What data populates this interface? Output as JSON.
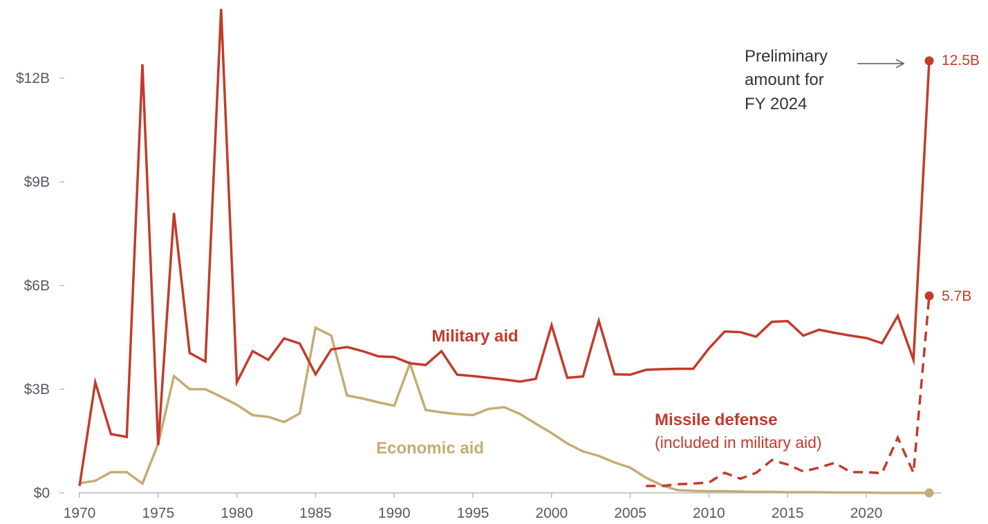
{
  "colors": {
    "military": "#c23b2b",
    "economic": "#c5ac73",
    "axis": "#b8b8b8",
    "tick_text": "#555a60",
    "note_text": "#333333"
  },
  "annotations": {
    "preliminary_lines": [
      "Preliminary",
      "amount for",
      "FY 2024"
    ],
    "military_end": "12.5B",
    "missile_end": "5.7B"
  },
  "chart_data": {
    "type": "line",
    "title": "",
    "xlabel": "",
    "ylabel": "",
    "xlim": [
      1970,
      2024
    ],
    "ylim": [
      0,
      14
    ],
    "x_ticks": [
      1970,
      1975,
      1980,
      1985,
      1990,
      1995,
      2000,
      2005,
      2010,
      2015,
      2020
    ],
    "y_ticks": [
      {
        "value": 0,
        "label": "$0"
      },
      {
        "value": 3,
        "label": "$3B"
      },
      {
        "value": 6,
        "label": "$6B"
      },
      {
        "value": 9,
        "label": "$9B"
      },
      {
        "value": 12,
        "label": "$12B"
      }
    ],
    "grid": false,
    "legend": "none (series labeled inline)",
    "series": [
      {
        "name": "Military aid",
        "key": "military",
        "style": "solid",
        "points": [
          [
            1970,
            0.2
          ],
          [
            1971,
            3.2
          ],
          [
            1972,
            1.7
          ],
          [
            1973,
            1.62
          ],
          [
            1974,
            12.4
          ],
          [
            1975,
            1.38
          ],
          [
            1976,
            8.1
          ],
          [
            1977,
            4.05
          ],
          [
            1978,
            3.8
          ],
          [
            1979,
            14.0
          ],
          [
            1980,
            3.2
          ],
          [
            1981,
            4.1
          ],
          [
            1982,
            3.85
          ],
          [
            1983,
            4.47
          ],
          [
            1984,
            4.32
          ],
          [
            1985,
            3.43
          ],
          [
            1986,
            4.15
          ],
          [
            1987,
            4.22
          ],
          [
            1988,
            4.1
          ],
          [
            1989,
            3.95
          ],
          [
            1990,
            3.93
          ],
          [
            1991,
            3.75
          ],
          [
            1992,
            3.7
          ],
          [
            1993,
            4.1
          ],
          [
            1994,
            3.42
          ],
          [
            1995,
            3.38
          ],
          [
            1996,
            3.33
          ],
          [
            1997,
            3.28
          ],
          [
            1998,
            3.22
          ],
          [
            1999,
            3.3
          ],
          [
            2000,
            4.85
          ],
          [
            2001,
            3.33
          ],
          [
            2002,
            3.37
          ],
          [
            2003,
            4.98
          ],
          [
            2004,
            3.43
          ],
          [
            2005,
            3.42
          ],
          [
            2006,
            3.56
          ],
          [
            2007,
            3.58
          ],
          [
            2008,
            3.59
          ],
          [
            2009,
            3.59
          ],
          [
            2010,
            4.18
          ],
          [
            2011,
            4.67
          ],
          [
            2012,
            4.65
          ],
          [
            2013,
            4.52
          ],
          [
            2014,
            4.95
          ],
          [
            2015,
            4.97
          ],
          [
            2016,
            4.55
          ],
          [
            2017,
            4.72
          ],
          [
            2018,
            4.63
          ],
          [
            2019,
            4.55
          ],
          [
            2020,
            4.48
          ],
          [
            2021,
            4.33
          ],
          [
            2022,
            5.12
          ],
          [
            2023,
            3.85
          ],
          [
            2024,
            12.5
          ]
        ]
      },
      {
        "name": "Economic aid",
        "key": "economic",
        "style": "solid",
        "points": [
          [
            1970,
            0.28
          ],
          [
            1971,
            0.35
          ],
          [
            1972,
            0.6
          ],
          [
            1973,
            0.6
          ],
          [
            1974,
            0.27
          ],
          [
            1975,
            1.42
          ],
          [
            1976,
            3.38
          ],
          [
            1977,
            3.0
          ],
          [
            1978,
            3.0
          ],
          [
            1979,
            2.78
          ],
          [
            1980,
            2.55
          ],
          [
            1981,
            2.25
          ],
          [
            1982,
            2.2
          ],
          [
            1983,
            2.05
          ],
          [
            1984,
            2.3
          ],
          [
            1985,
            4.78
          ],
          [
            1986,
            4.55
          ],
          [
            1987,
            2.82
          ],
          [
            1988,
            2.73
          ],
          [
            1989,
            2.62
          ],
          [
            1990,
            2.52
          ],
          [
            1991,
            3.74
          ],
          [
            1992,
            2.4
          ],
          [
            1993,
            2.33
          ],
          [
            1994,
            2.28
          ],
          [
            1995,
            2.25
          ],
          [
            1996,
            2.43
          ],
          [
            1997,
            2.48
          ],
          [
            1998,
            2.28
          ],
          [
            1999,
            2.0
          ],
          [
            2000,
            1.73
          ],
          [
            2001,
            1.43
          ],
          [
            2002,
            1.2
          ],
          [
            2003,
            1.07
          ],
          [
            2004,
            0.88
          ],
          [
            2005,
            0.73
          ],
          [
            2006,
            0.44
          ],
          [
            2007,
            0.22
          ],
          [
            2008,
            0.08
          ],
          [
            2009,
            0.06
          ],
          [
            2010,
            0.05
          ],
          [
            2011,
            0.05
          ],
          [
            2012,
            0.04
          ],
          [
            2013,
            0.03
          ],
          [
            2014,
            0.03
          ],
          [
            2015,
            0.02
          ],
          [
            2016,
            0.02
          ],
          [
            2017,
            0.02
          ],
          [
            2018,
            0.01
          ],
          [
            2019,
            0.01
          ],
          [
            2020,
            0.01
          ],
          [
            2021,
            0.0
          ],
          [
            2022,
            0.0
          ],
          [
            2023,
            0.0
          ],
          [
            2024,
            0.0
          ]
        ]
      },
      {
        "name": "Missile defense",
        "subtitle": "(included in military aid)",
        "key": "missile",
        "style": "dashed",
        "points": [
          [
            2006,
            0.2
          ],
          [
            2007,
            0.2
          ],
          [
            2008,
            0.25
          ],
          [
            2009,
            0.27
          ],
          [
            2010,
            0.3
          ],
          [
            2011,
            0.58
          ],
          [
            2012,
            0.41
          ],
          [
            2013,
            0.58
          ],
          [
            2014,
            0.95
          ],
          [
            2015,
            0.82
          ],
          [
            2016,
            0.62
          ],
          [
            2017,
            0.73
          ],
          [
            2018,
            0.87
          ],
          [
            2019,
            0.6
          ],
          [
            2020,
            0.6
          ],
          [
            2021,
            0.57
          ],
          [
            2022,
            1.6
          ],
          [
            2023,
            0.58
          ],
          [
            2024,
            5.7
          ]
        ]
      }
    ]
  }
}
